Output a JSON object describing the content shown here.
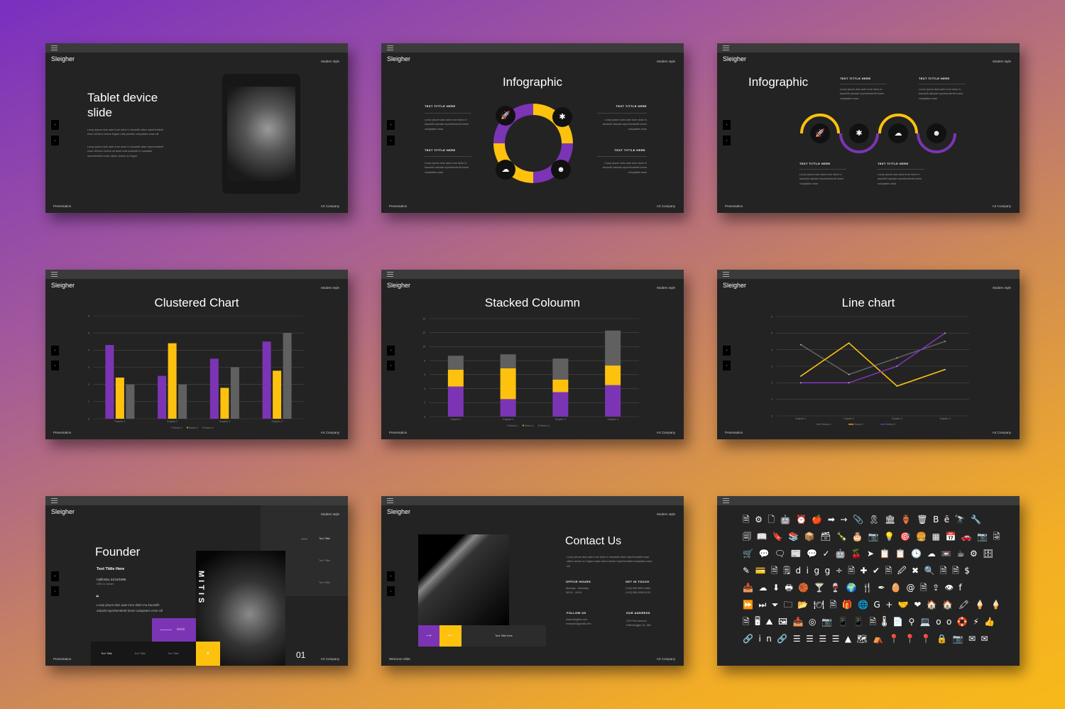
{
  "common": {
    "brand": "Sleigher",
    "tag": "Modern style",
    "footer_left": "Presentation",
    "footer_right": "Art Company",
    "nav_up": "↑",
    "nav_down": "↓"
  },
  "colors": {
    "purple": "#7b35b4",
    "yellow": "#fec20e",
    "gray": "#606060",
    "slide_bg": "#232323"
  },
  "tablet": {
    "title_line1": "Tablet device",
    "title_line2": "slide",
    "para1": "Lorep ipsum duis aute irure dolor in kauselih aliae reprehenderit esse cill illum dolore fugiat nulla pariatur voluptates esse cill.",
    "para2": "Lorep ipsum duis aute irure dolor in kauselih aliae reprehenderit esse cill illum dolore sit amet duis autendit in voluptate reprehenderit esse cillum dolore eu fugiat."
  },
  "infographic1": {
    "title": "Infographic",
    "items": [
      {
        "title": "TEXT TITTLE HERE",
        "text": "Lorep ipsum duis aute irure dolor in kauselih aduslal reprehenderitt lorem voluptates esse",
        "icon": "rocket-icon",
        "glyph": "🚀"
      },
      {
        "title": "TEXT TITTLE HERE",
        "text": "Lorep ipsum duis aute irure dolor in kauselih aduslal reprehenderitt lorem voluptates esse",
        "icon": "puzzle-icon",
        "glyph": "✱"
      },
      {
        "title": "TEXT TITTLE HERE",
        "text": "Lorep ipsum duis aute irure dolor in kauselih aduslal reprehenderitt lorem voluptates esse",
        "icon": "cloud-icon",
        "glyph": "☁"
      },
      {
        "title": "TEXT TITTLE HERE",
        "text": "Lorep ipsum duis aute irure dolor in kauselih aduslal reprehenderitt lorem voluptates esse",
        "icon": "masks-icon",
        "glyph": "☻"
      }
    ]
  },
  "infographic2": {
    "title": "Infographic",
    "items": [
      {
        "title": "TEXT TITTLE HERE",
        "text": "Lorep ipsum duis aute irure dolor in kauselih aduslal reprehenderitt lorem voluptates esse",
        "icon": "rocket-icon",
        "glyph": "🚀"
      },
      {
        "title": "TEXT TITTLE HERE",
        "text": "Lorep ipsum duis aute irure dolor in kauselih aduslal reprehenderitt lorem voluptates esse",
        "icon": "puzzle-icon",
        "glyph": "✱"
      },
      {
        "title": "TEXT TITTLE HERE",
        "text": "Lorep ipsum duis aute irure dolor in kauselih aduslal reprehenderitt lorem voluptates esse",
        "icon": "cloud-icon",
        "glyph": "☁"
      },
      {
        "title": "TEXT TITTLE HERE",
        "text": "Lorep ipsum duis aute irure dolor in kauselih aduslal reprehenderitt lorem voluptates esse",
        "icon": "masks-icon",
        "glyph": "☻"
      }
    ]
  },
  "chart_data": [
    {
      "type": "bar",
      "title": "Clustered Chart",
      "categories": [
        "Graphic 1",
        "Graphic 2",
        "Graphic 3",
        "Graphic 4"
      ],
      "series": [
        {
          "name": "Series 1",
          "values": [
            4.3,
            2.5,
            3.5,
            4.5
          ]
        },
        {
          "name": "Series 2",
          "values": [
            2.4,
            4.4,
            1.8,
            2.8
          ]
        },
        {
          "name": "Series 3",
          "values": [
            2,
            2,
            3,
            5
          ]
        }
      ],
      "ylim": [
        0,
        6
      ],
      "yticks": [
        0,
        1,
        2,
        3,
        4,
        5,
        6
      ],
      "grid": true,
      "legend": "bottom"
    },
    {
      "type": "bar",
      "stacked": true,
      "title": "Stacked Coloumn",
      "categories": [
        "Graphic 1",
        "Graphic 2",
        "Graphic 3",
        "Graphic 4"
      ],
      "series": [
        {
          "name": "Series 1",
          "values": [
            4.3,
            2.5,
            3.5,
            4.5
          ]
        },
        {
          "name": "Series 2",
          "values": [
            2.4,
            4.4,
            1.8,
            2.8
          ]
        },
        {
          "name": "Series 3",
          "values": [
            2,
            2,
            3,
            5
          ]
        }
      ],
      "ylim": [
        0,
        14
      ],
      "yticks": [
        0,
        2,
        4,
        6,
        8,
        10,
        12,
        14
      ],
      "grid": true,
      "legend": "bottom"
    },
    {
      "type": "line",
      "title": "Line chart",
      "categories": [
        "Graphic 1",
        "Graphic 2",
        "Graphic 3",
        "Graphic 4"
      ],
      "series": [
        {
          "name": "Series 1",
          "values": [
            4.3,
            2.5,
            3.5,
            4.5
          ]
        },
        {
          "name": "Series 2",
          "values": [
            2.4,
            4.4,
            1.8,
            2.8
          ]
        },
        {
          "name": "Series 3",
          "values": [
            2,
            2,
            3,
            5
          ]
        }
      ],
      "ylim": [
        0,
        6
      ],
      "yticks": [
        0,
        1,
        2,
        3,
        4,
        5,
        6
      ],
      "grid": true,
      "legend": "bottom"
    }
  ],
  "founder": {
    "title": "Founder",
    "subtitle": "Text Tittle  Here",
    "location": "California, 01/14/1998",
    "role": "CEO & Owner",
    "quote_mark": "“",
    "quote": "Lorep ipsum duis aute irure dolor ina kauselih aduslal reprehenderitt lorem voluptates esse cill",
    "counter": "01/02",
    "side_items": [
      "Text Tittle",
      "Text Tittle",
      "Text Tittle"
    ],
    "bottom_items": [
      "Text Tittle",
      "Text Tittle",
      "Text Tittle"
    ],
    "photo_text": "MITIS",
    "number": "01",
    "plus": "+"
  },
  "contact": {
    "title": "Contact Us",
    "intro": "Lorep ipsum duis aute irure dolor in kauselih aliae reprehenderit esse cillum dolore eu fugiat culpa cillum dolore reprehenderit voluptates esse cill.",
    "office_hours": {
      "label": "OFFICE HOURS",
      "line1": "Monday - Saturday",
      "line2": "08.00 - 18.00"
    },
    "get_in_touch": {
      "label": "GET IN TOUCH",
      "line1": "(+62) 085 8504 3481",
      "line2": "(+62) 085 6358 5132"
    },
    "follow_us": {
      "label": "FOLLOW US",
      "line1": "www.sleigher.com",
      "line2": "example@gmail.com"
    },
    "address": {
      "label": "OUR ADDRESS",
      "line1": "125 Pine Avenue",
      "line2": "Kalimanggis LA, 382"
    },
    "strip_text": "Text Tittle here",
    "footer_left": "Welcome Slide"
  },
  "icons": {
    "rows": [
      "🗎⚙🗋🤖⏰🍎➡→📎🎗🏛🏺🗑Bē🔭🔧",
      "🗐📖🔖📚📦🗃🍾🎂📷💡🎯🍔▦📅🚗📷🗟",
      "🛒💬🗨📰💬✓🤖🍒➤📋📋🕒☁📼☕⚙🗄",
      "✎💳🗎🗒digg÷🗎✚✔🗎🖉✖🔍🗎🗎$",
      "📥☁⬇🖶🏀🍸🍷🌍🍴✒🥚@🗎⇪👁f",
      "⏩⏭⏷🗀📂🍽🗎🎁🌐G+🤝❤🏠🏠🖍🍦🍦",
      "🗎🖥⛰🖼📥◎📷📱📱🗎🌡📄⚲💻oo🛟⚡👍",
      "🔗in🔗☰☰☰☰▲🗺⛺📍📍📍🔒📷✉✉"
    ]
  }
}
